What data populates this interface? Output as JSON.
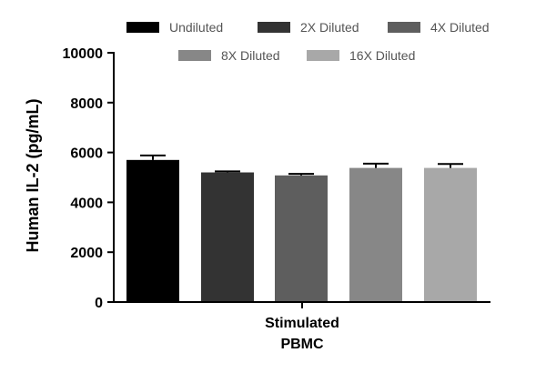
{
  "chart_data": {
    "type": "bar",
    "title": "",
    "ylabel": "Human IL-2 (pg/mL)",
    "xlabel": "",
    "ylim": [
      0,
      10000
    ],
    "yticks": [
      "0",
      "2000",
      "4000",
      "6000",
      "8000",
      "10000"
    ],
    "category": {
      "line1": "Stimulated",
      "line2": "PBMC"
    },
    "legend_position": "top",
    "series": [
      {
        "name": "Undiluted",
        "value": 5700,
        "error": 180,
        "color": "#000000"
      },
      {
        "name": "2X Diluted",
        "value": 5200,
        "error": 40,
        "color": "#333333"
      },
      {
        "name": "4X Diluted",
        "value": 5080,
        "error": 60,
        "color": "#5e5e5e"
      },
      {
        "name": "8X Diluted",
        "value": 5380,
        "error": 170,
        "color": "#878787"
      },
      {
        "name": "16X Diluted",
        "value": 5380,
        "error": 160,
        "color": "#a8a8a8"
      }
    ]
  }
}
